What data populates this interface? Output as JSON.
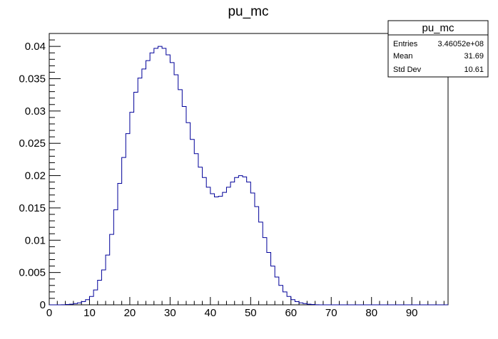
{
  "chart_data": {
    "type": "histogram",
    "title": "pu_mc",
    "xlabel": "",
    "ylabel": "",
    "xlim": [
      0,
      99
    ],
    "ylim": [
      0,
      0.042
    ],
    "bin_width": 1,
    "x_ticks": [
      0,
      10,
      20,
      30,
      40,
      50,
      60,
      70,
      80,
      90
    ],
    "y_ticks": [
      0,
      0.005,
      0.01,
      0.015,
      0.02,
      0.025,
      0.03,
      0.035,
      0.04
    ],
    "y_tick_labels": [
      "0",
      "0.005",
      "0.01",
      "0.015",
      "0.02",
      "0.025",
      "0.03",
      "0.035",
      "0.04"
    ],
    "line_color": "#000099",
    "grid": false,
    "legend_placement": "top-right",
    "series": [
      {
        "name": "pu_mc",
        "bin_edges_start": 0,
        "values": [
          0,
          0,
          0,
          2e-05,
          5e-05,
          0.0001,
          0.0002,
          0.0003,
          0.0005,
          0.0008,
          0.0013,
          0.0023,
          0.0038,
          0.0054,
          0.0077,
          0.0109,
          0.0147,
          0.0188,
          0.0228,
          0.0265,
          0.0298,
          0.0329,
          0.0351,
          0.0365,
          0.0378,
          0.039,
          0.0397,
          0.04,
          0.0397,
          0.0387,
          0.0375,
          0.0356,
          0.0333,
          0.0307,
          0.0282,
          0.0256,
          0.0234,
          0.0213,
          0.0197,
          0.0182,
          0.0172,
          0.0167,
          0.0168,
          0.0174,
          0.0182,
          0.019,
          0.0197,
          0.02,
          0.0198,
          0.019,
          0.0173,
          0.0152,
          0.0128,
          0.0104,
          0.0081,
          0.006,
          0.0043,
          0.003,
          0.002,
          0.0013,
          0.0008,
          0.0005,
          0.0003,
          0.0002,
          0.0001,
          5e-05,
          2e-05,
          0,
          0,
          0,
          0,
          0,
          0,
          0,
          0,
          0,
          0,
          0,
          0,
          0,
          0,
          0,
          0,
          0,
          0,
          0,
          0,
          0,
          0,
          0,
          0,
          0,
          0,
          0,
          0,
          0,
          0,
          0,
          0
        ]
      }
    ]
  },
  "stats_box": {
    "title": "pu_mc",
    "rows": [
      {
        "label": "Entries",
        "value": "3.46052e+08"
      },
      {
        "label": "Mean",
        "value": "31.69"
      },
      {
        "label": "Std Dev",
        "value": "10.61"
      }
    ]
  }
}
